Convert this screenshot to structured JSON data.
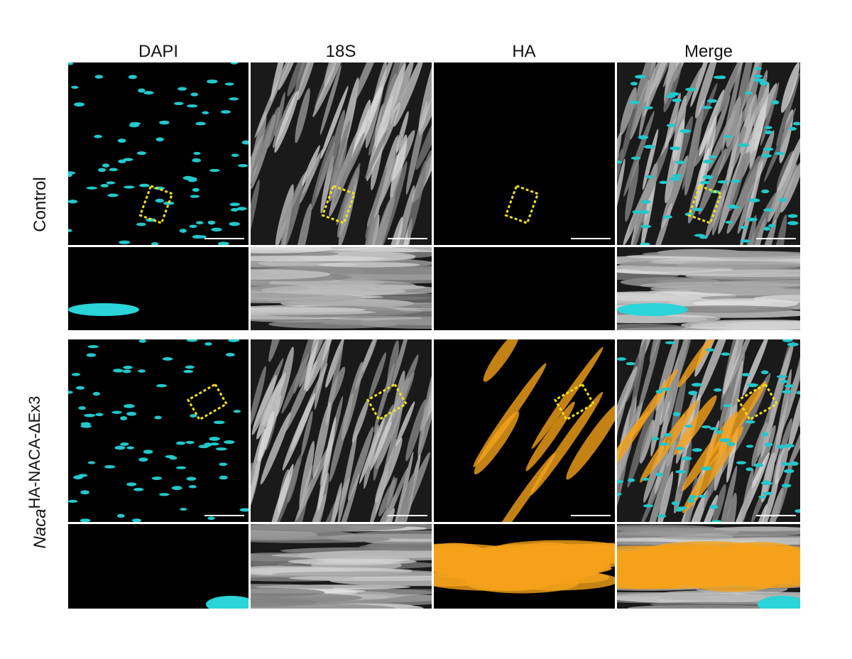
{
  "columns": [
    "DAPI",
    "18S",
    "HA",
    "Merge"
  ],
  "rows": [
    {
      "label": "Control"
    },
    {
      "label_italic": "Naca",
      "label": "HA-NACA-ΔEx3"
    }
  ]
}
